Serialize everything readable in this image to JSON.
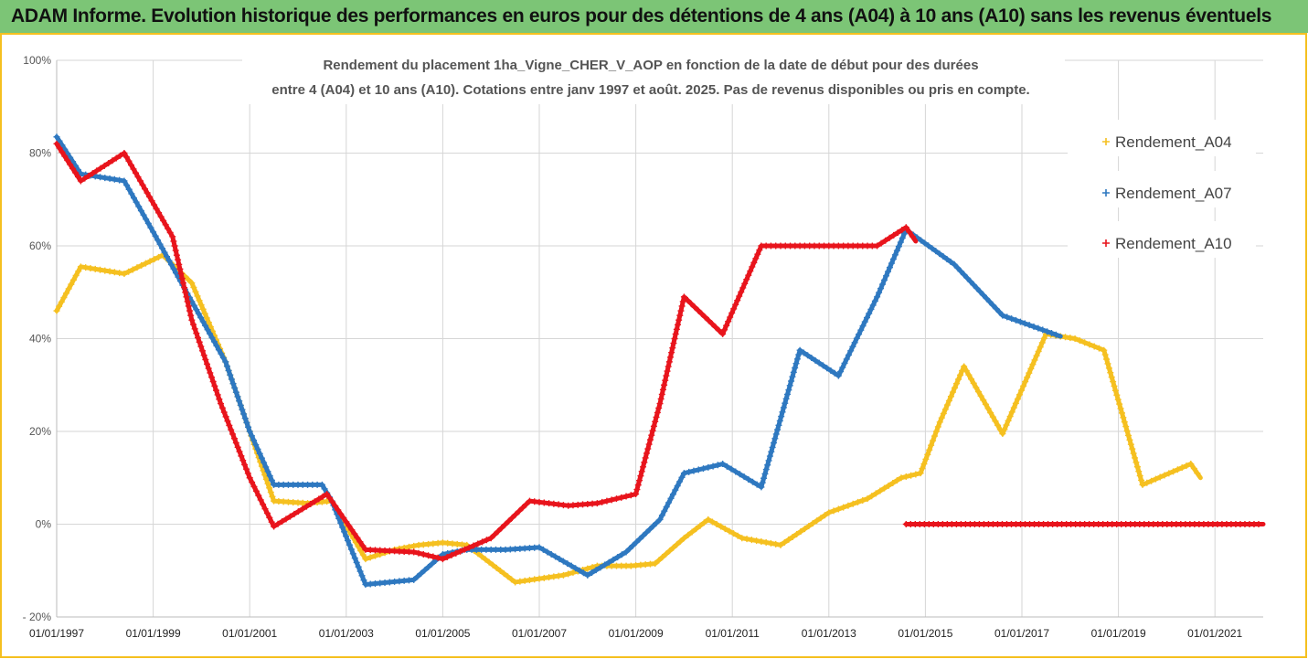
{
  "header": {
    "title": "ADAM Informe. Evolution historique des performances en euros pour des détentions de 4 ans (A04) à 10 ans (A10) sans les revenus éventuels"
  },
  "colors": {
    "header_bg": "#7cc576",
    "A04": "#f5c020",
    "A07": "#2e78c0",
    "A10": "#e8141c",
    "frame": "#f5c020"
  },
  "chart_data": {
    "type": "line",
    "title_lines": [
      "Rendement du placement 1ha_Vigne_CHER_V_AOP en fonction de la date de début pour des durées",
      "entre 4 (A04) et 10 ans (A10). Cotations entre janv 1997 et août. 2025. Pas de revenus disponibles ou pris en compte."
    ],
    "xlim": [
      1997.0,
      2022.0
    ],
    "ylim": [
      -20,
      100
    ],
    "yticks": [
      -20,
      0,
      20,
      40,
      60,
      80,
      100
    ],
    "ytick_labels": [
      "- 20%",
      "0%",
      "20%",
      "40%",
      "60%",
      "80%",
      "100%"
    ],
    "xticks": [
      1997,
      1999,
      2001,
      2003,
      2005,
      2007,
      2009,
      2011,
      2013,
      2015,
      2017,
      2019,
      2021
    ],
    "xtick_labels": [
      "01/01/1997",
      "01/01/1999",
      "01/01/2001",
      "01/01/2003",
      "01/01/2005",
      "01/01/2007",
      "01/01/2009",
      "01/01/2011",
      "01/01/2013",
      "01/01/2015",
      "01/01/2017",
      "01/01/2019",
      "01/01/2021"
    ],
    "grid": true,
    "legend": "top-right",
    "series": [
      {
        "name": "Rendement_A04",
        "color": "#f5c020",
        "points": [
          [
            1997.0,
            46
          ],
          [
            1997.5,
            55.5
          ],
          [
            1998.4,
            54
          ],
          [
            1999.2,
            58
          ],
          [
            1999.8,
            52
          ],
          [
            2000.5,
            35
          ],
          [
            2001.0,
            20
          ],
          [
            2001.5,
            5
          ],
          [
            2002.2,
            4.5
          ],
          [
            2002.7,
            5
          ],
          [
            2003.4,
            -7.5
          ],
          [
            2004.0,
            -5.5
          ],
          [
            2004.5,
            -4.5
          ],
          [
            2005.0,
            -4
          ],
          [
            2005.5,
            -4.5
          ],
          [
            2006.5,
            -12.5
          ],
          [
            2007.5,
            -11
          ],
          [
            2008.2,
            -9
          ],
          [
            2008.9,
            -9
          ],
          [
            2009.4,
            -8.5
          ],
          [
            2010.0,
            -3
          ],
          [
            2010.5,
            1
          ],
          [
            2011.2,
            -3
          ],
          [
            2012.0,
            -4.5
          ],
          [
            2013.0,
            2.5
          ],
          [
            2013.8,
            5.5
          ],
          [
            2014.5,
            10
          ],
          [
            2014.9,
            11
          ],
          [
            2015.3,
            22
          ],
          [
            2015.8,
            34
          ],
          [
            2016.6,
            19.5
          ],
          [
            2017.5,
            41
          ],
          [
            2018.1,
            40
          ],
          [
            2018.7,
            37.5
          ],
          [
            2019.5,
            8.5
          ],
          [
            2020.5,
            13
          ],
          [
            2020.7,
            10
          ]
        ]
      },
      {
        "name": "Rendement_A07",
        "color": "#2e78c0",
        "points": [
          [
            1997.0,
            83.5
          ],
          [
            1997.5,
            75.5
          ],
          [
            1998.4,
            74
          ],
          [
            1999.0,
            63
          ],
          [
            1999.8,
            48
          ],
          [
            2000.5,
            35
          ],
          [
            2001.0,
            20
          ],
          [
            2001.5,
            8.5
          ],
          [
            2002.2,
            8.5
          ],
          [
            2002.5,
            8.5
          ],
          [
            2002.7,
            5
          ],
          [
            2003.4,
            -13
          ],
          [
            2004.4,
            -12
          ],
          [
            2005.0,
            -6.5
          ],
          [
            2005.5,
            -5.5
          ],
          [
            2006.3,
            -5.5
          ],
          [
            2007.0,
            -5
          ],
          [
            2008.0,
            -11
          ],
          [
            2008.8,
            -6
          ],
          [
            2009.5,
            1
          ],
          [
            2010.0,
            11
          ],
          [
            2010.8,
            13
          ],
          [
            2011.6,
            8
          ],
          [
            2012.4,
            37.5
          ],
          [
            2013.2,
            32
          ],
          [
            2014.0,
            49
          ],
          [
            2014.6,
            63.5
          ],
          [
            2015.6,
            56
          ],
          [
            2016.6,
            45
          ],
          [
            2017.8,
            40.5
          ]
        ]
      },
      {
        "name": "Rendement_A10",
        "color": "#e8141c",
        "points": [
          [
            1997.0,
            82
          ],
          [
            1997.5,
            74
          ],
          [
            1998.4,
            80
          ],
          [
            1999.4,
            62
          ],
          [
            1999.8,
            44
          ],
          [
            2000.4,
            26
          ],
          [
            2001.0,
            10
          ],
          [
            2001.5,
            -0.5
          ],
          [
            2002.6,
            6.5
          ],
          [
            2003.4,
            -5.5
          ],
          [
            2004.4,
            -6
          ],
          [
            2005.0,
            -7.5
          ],
          [
            2006.0,
            -3
          ],
          [
            2006.8,
            5
          ],
          [
            2007.6,
            4
          ],
          [
            2008.2,
            4.5
          ],
          [
            2009.0,
            6.5
          ],
          [
            2009.5,
            26
          ],
          [
            2010.0,
            49
          ],
          [
            2010.8,
            41
          ],
          [
            2011.6,
            60
          ],
          [
            2012.4,
            60
          ],
          [
            2013.2,
            60
          ],
          [
            2014.0,
            60
          ],
          [
            2014.6,
            64
          ],
          [
            2014.8,
            61
          ]
        ]
      },
      {
        "name": "",
        "color": "#e8141c",
        "points": [
          [
            2014.6,
            0
          ],
          [
            2022.0,
            0
          ]
        ]
      }
    ]
  }
}
